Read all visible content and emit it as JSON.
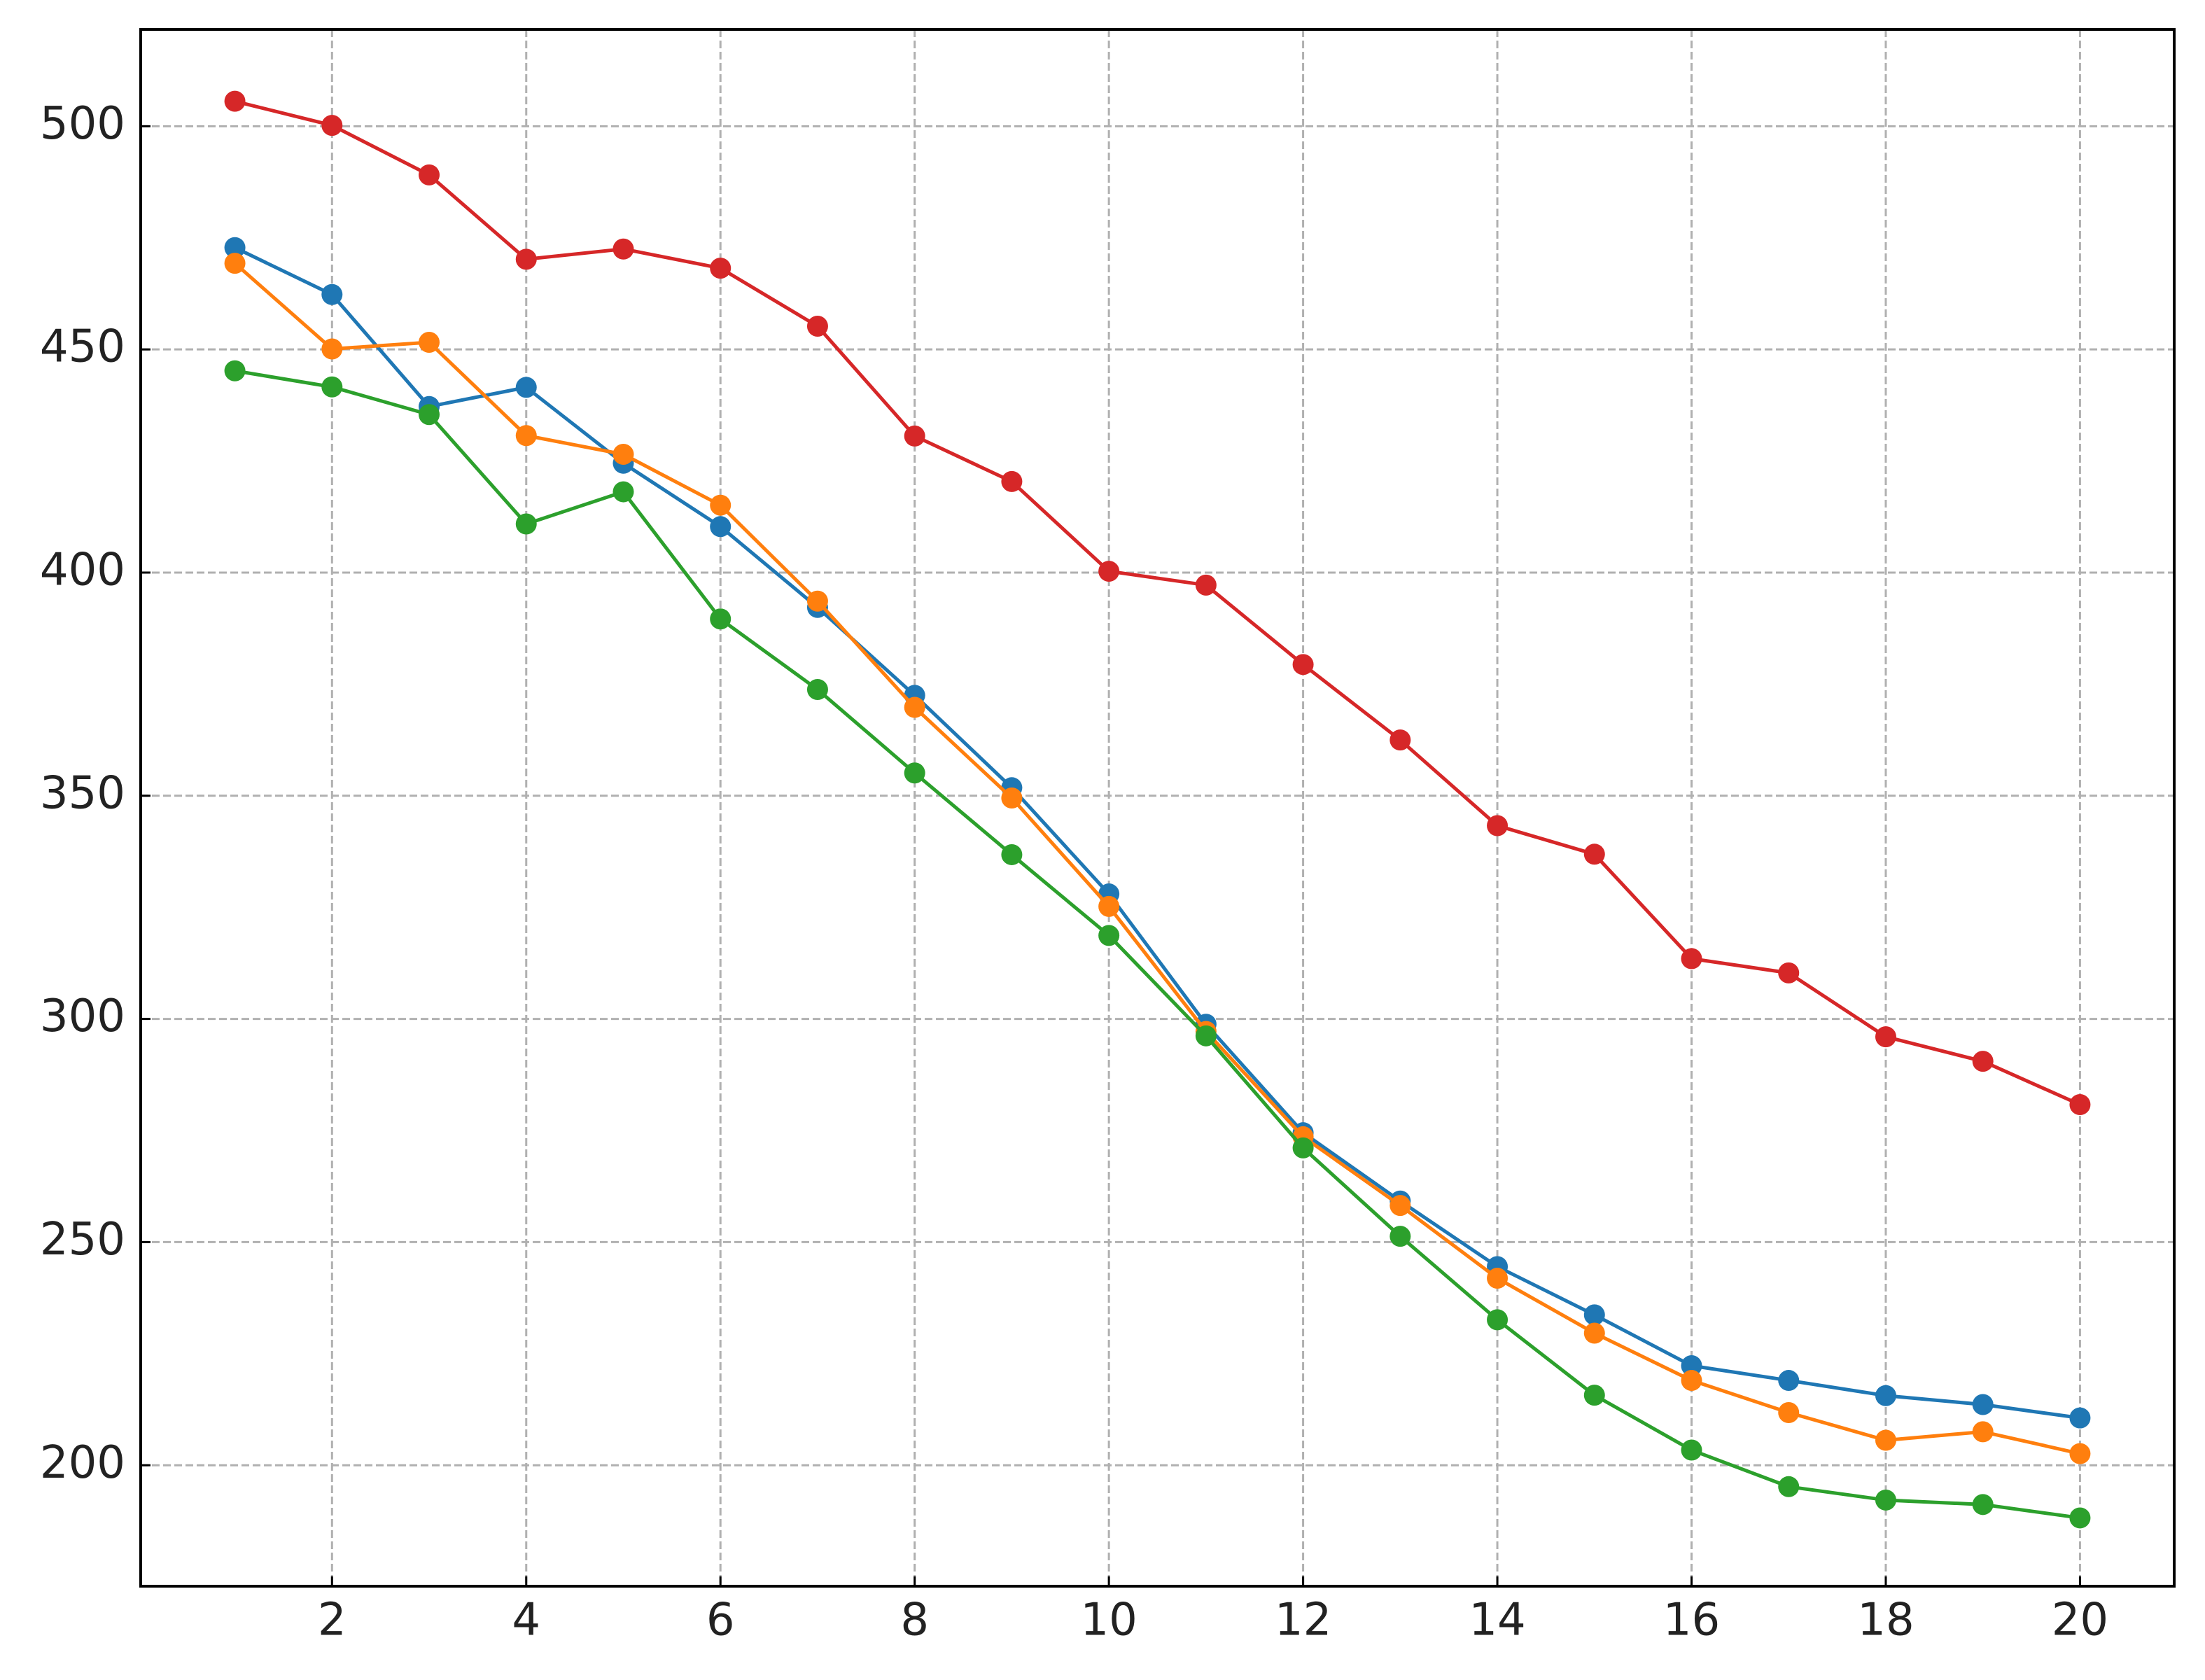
{
  "chart_data": {
    "type": "line",
    "x": [
      1,
      2,
      3,
      4,
      5,
      6,
      7,
      8,
      9,
      10,
      11,
      12,
      13,
      14,
      15,
      16,
      17,
      18,
      19,
      20
    ],
    "series": [
      {
        "color": "#1f77b4",
        "values": [
          472.8,
          462.3,
          437.2,
          441.5,
          424.5,
          410.3,
          392.2,
          372.5,
          351.8,
          328.0,
          298.8,
          274.5,
          259.2,
          244.5,
          233.7,
          222.3,
          219.0,
          215.6,
          213.6,
          210.6
        ]
      },
      {
        "color": "#ff7f0e",
        "values": [
          469.3,
          450.1,
          451.6,
          430.7,
          426.5,
          415.1,
          393.6,
          369.8,
          349.5,
          325.2,
          297.2,
          273.6,
          258.2,
          241.9,
          229.6,
          219.0,
          211.8,
          205.6,
          207.5,
          202.6
        ]
      },
      {
        "color": "#2ca02c",
        "values": [
          445.2,
          441.6,
          435.4,
          410.9,
          418.1,
          389.6,
          373.8,
          355.1,
          336.8,
          318.7,
          296.2,
          271.1,
          251.3,
          232.6,
          215.7,
          203.4,
          195.2,
          192.2,
          191.2,
          188.2
        ]
      },
      {
        "color": "#d62728",
        "values": [
          505.6,
          500.2,
          489.1,
          470.2,
          472.5,
          468.2,
          455.2,
          430.6,
          420.4,
          400.3,
          397.2,
          379.4,
          362.5,
          343.3,
          336.9,
          313.5,
          310.3,
          296.0,
          290.5,
          280.8
        ]
      }
    ],
    "xlim": [
      0.03,
      20.97
    ],
    "xticks": [
      2,
      4,
      6,
      8,
      10,
      12,
      14,
      16,
      18,
      20
    ],
    "ylim": [
      172.9,
      521.7
    ],
    "yticks": [
      200,
      250,
      300,
      350,
      400,
      450,
      500
    ],
    "grid": true
  }
}
